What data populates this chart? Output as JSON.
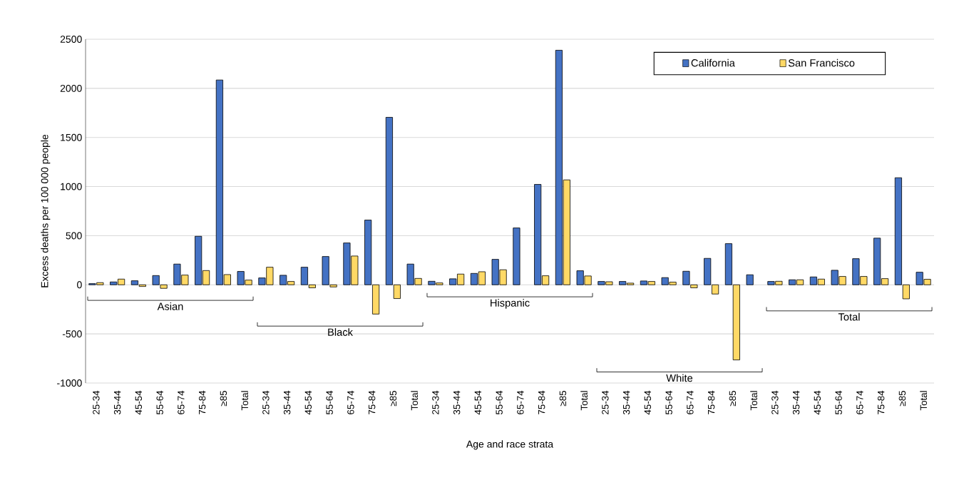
{
  "chart_data": {
    "type": "bar",
    "xlabel": "Age and race strata",
    "ylabel": "Excess deaths per 100 000 people",
    "categories": [
      "25-34",
      "35-44",
      "45-54",
      "55-64",
      "65-74",
      "75-84",
      "≥85",
      "Total",
      "25-34",
      "35-44",
      "45-54",
      "55-64",
      "65-74",
      "75-84",
      "≥85",
      "Total",
      "25-34",
      "35-44",
      "45-54",
      "55-64",
      "65-74",
      "75-84",
      "≥85",
      "Total",
      "25-34",
      "35-44",
      "45-54",
      "55-64",
      "65-74",
      "75-84",
      "≥85",
      "Total",
      "25-34",
      "35-44",
      "45-54",
      "55-64",
      "65-74",
      "75-84",
      "≥85",
      "Total"
    ],
    "series": [
      {
        "name": "California",
        "color": "#4472c4",
        "values": [
          12,
          29,
          41,
          94,
          211,
          494,
          2085,
          136,
          70,
          97,
          179,
          288,
          426,
          659,
          1705,
          211,
          36,
          61,
          116,
          259,
          579,
          1022,
          2388,
          143,
          34,
          34,
          39,
          73,
          138,
          269,
          419,
          102,
          34,
          51,
          80,
          148,
          266,
          475,
          1090,
          128
        ]
      },
      {
        "name": "San Francisco",
        "color": "#ffd966",
        "values": [
          22,
          58,
          -17,
          -36,
          99,
          145,
          104,
          48,
          179,
          34,
          -31,
          -22,
          293,
          -298,
          -140,
          65,
          19,
          109,
          133,
          153,
          null,
          92,
          1068,
          90,
          31,
          17,
          34,
          27,
          -31,
          -94,
          -765,
          null,
          36,
          51,
          58,
          85,
          85,
          63,
          -143,
          56
        ]
      }
    ],
    "annotations": [
      "Asian",
      "Black",
      "Hispanic",
      "White",
      "Total"
    ],
    "ylim": [
      -1000,
      2500
    ],
    "yticks": [
      -1000,
      -500,
      0,
      500,
      1000,
      1500,
      2000,
      2500
    ],
    "grid": "y",
    "legend": "top right"
  }
}
